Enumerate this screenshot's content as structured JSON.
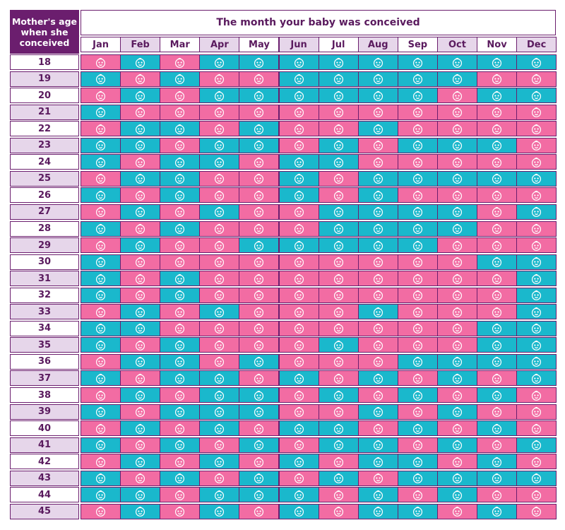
{
  "header": {
    "corner_label": "Mother's age when she conceived",
    "title": "The month your baby was conceived"
  },
  "colors": {
    "girl": "#f26ca3",
    "boy": "#1ab8cc",
    "border": "#6b1e6e",
    "header_alt": "#e6d6ea",
    "text": "#5a1a5e"
  },
  "legend_icon": "baby-face-icon",
  "chart_data": {
    "type": "table",
    "columns": [
      "Jan",
      "Feb",
      "Mar",
      "Apr",
      "May",
      "Jun",
      "Jul",
      "Aug",
      "Sep",
      "Oct",
      "Nov",
      "Dec"
    ],
    "rows": [
      {
        "age": "18",
        "cells": [
          "P",
          "B",
          "P",
          "B",
          "B",
          "B",
          "B",
          "B",
          "B",
          "B",
          "B",
          "B"
        ]
      },
      {
        "age": "19",
        "cells": [
          "B",
          "P",
          "B",
          "P",
          "P",
          "B",
          "B",
          "B",
          "B",
          "B",
          "P",
          "P"
        ]
      },
      {
        "age": "20",
        "cells": [
          "P",
          "B",
          "P",
          "B",
          "B",
          "B",
          "B",
          "B",
          "B",
          "P",
          "B",
          "B"
        ]
      },
      {
        "age": "21",
        "cells": [
          "B",
          "P",
          "P",
          "P",
          "P",
          "P",
          "P",
          "P",
          "P",
          "P",
          "P",
          "P"
        ]
      },
      {
        "age": "22",
        "cells": [
          "P",
          "B",
          "B",
          "P",
          "B",
          "P",
          "P",
          "B",
          "P",
          "P",
          "P",
          "P"
        ]
      },
      {
        "age": "23",
        "cells": [
          "B",
          "B",
          "P",
          "B",
          "B",
          "P",
          "B",
          "P",
          "B",
          "B",
          "B",
          "P"
        ]
      },
      {
        "age": "24",
        "cells": [
          "B",
          "P",
          "B",
          "B",
          "P",
          "B",
          "B",
          "P",
          "P",
          "P",
          "P",
          "P"
        ]
      },
      {
        "age": "25",
        "cells": [
          "P",
          "B",
          "B",
          "P",
          "P",
          "B",
          "P",
          "B",
          "B",
          "B",
          "B",
          "B"
        ]
      },
      {
        "age": "26",
        "cells": [
          "B",
          "P",
          "B",
          "P",
          "P",
          "B",
          "P",
          "B",
          "P",
          "P",
          "P",
          "P"
        ]
      },
      {
        "age": "27",
        "cells": [
          "P",
          "B",
          "P",
          "B",
          "P",
          "P",
          "B",
          "B",
          "B",
          "B",
          "P",
          "B"
        ]
      },
      {
        "age": "28",
        "cells": [
          "B",
          "P",
          "B",
          "P",
          "P",
          "P",
          "B",
          "B",
          "B",
          "B",
          "P",
          "P"
        ]
      },
      {
        "age": "29",
        "cells": [
          "P",
          "B",
          "P",
          "P",
          "B",
          "B",
          "B",
          "B",
          "B",
          "P",
          "P",
          "P"
        ]
      },
      {
        "age": "30",
        "cells": [
          "B",
          "P",
          "P",
          "P",
          "P",
          "P",
          "P",
          "P",
          "P",
          "P",
          "B",
          "B"
        ]
      },
      {
        "age": "31",
        "cells": [
          "B",
          "P",
          "B",
          "P",
          "P",
          "P",
          "P",
          "P",
          "P",
          "P",
          "P",
          "B"
        ]
      },
      {
        "age": "32",
        "cells": [
          "B",
          "P",
          "B",
          "P",
          "P",
          "P",
          "P",
          "P",
          "P",
          "P",
          "P",
          "B"
        ]
      },
      {
        "age": "33",
        "cells": [
          "P",
          "B",
          "P",
          "B",
          "P",
          "P",
          "P",
          "B",
          "P",
          "P",
          "P",
          "B"
        ]
      },
      {
        "age": "34",
        "cells": [
          "B",
          "B",
          "P",
          "P",
          "P",
          "P",
          "P",
          "P",
          "P",
          "P",
          "B",
          "B"
        ]
      },
      {
        "age": "35",
        "cells": [
          "B",
          "P",
          "B",
          "P",
          "P",
          "P",
          "B",
          "P",
          "P",
          "P",
          "B",
          "B"
        ]
      },
      {
        "age": "36",
        "cells": [
          "P",
          "B",
          "B",
          "P",
          "B",
          "P",
          "P",
          "P",
          "B",
          "B",
          "B",
          "B"
        ]
      },
      {
        "age": "37",
        "cells": [
          "B",
          "P",
          "B",
          "B",
          "P",
          "B",
          "P",
          "B",
          "P",
          "B",
          "P",
          "B"
        ]
      },
      {
        "age": "38",
        "cells": [
          "P",
          "B",
          "P",
          "B",
          "B",
          "P",
          "B",
          "P",
          "B",
          "P",
          "B",
          "P"
        ]
      },
      {
        "age": "39",
        "cells": [
          "B",
          "P",
          "B",
          "B",
          "B",
          "P",
          "P",
          "B",
          "P",
          "B",
          "P",
          "P"
        ]
      },
      {
        "age": "40",
        "cells": [
          "P",
          "B",
          "P",
          "B",
          "P",
          "B",
          "B",
          "P",
          "B",
          "P",
          "B",
          "P"
        ]
      },
      {
        "age": "41",
        "cells": [
          "B",
          "P",
          "B",
          "P",
          "B",
          "P",
          "B",
          "B",
          "P",
          "B",
          "P",
          "B"
        ]
      },
      {
        "age": "42",
        "cells": [
          "P",
          "B",
          "P",
          "B",
          "P",
          "B",
          "P",
          "B",
          "B",
          "P",
          "B",
          "P"
        ]
      },
      {
        "age": "43",
        "cells": [
          "B",
          "P",
          "B",
          "P",
          "B",
          "P",
          "B",
          "P",
          "B",
          "B",
          "B",
          "B"
        ]
      },
      {
        "age": "44",
        "cells": [
          "B",
          "B",
          "P",
          "B",
          "B",
          "B",
          "P",
          "B",
          "P",
          "B",
          "P",
          "P"
        ]
      },
      {
        "age": "45",
        "cells": [
          "P",
          "B",
          "P",
          "B",
          "P",
          "B",
          "P",
          "B",
          "B",
          "P",
          "B",
          "P"
        ]
      }
    ]
  }
}
